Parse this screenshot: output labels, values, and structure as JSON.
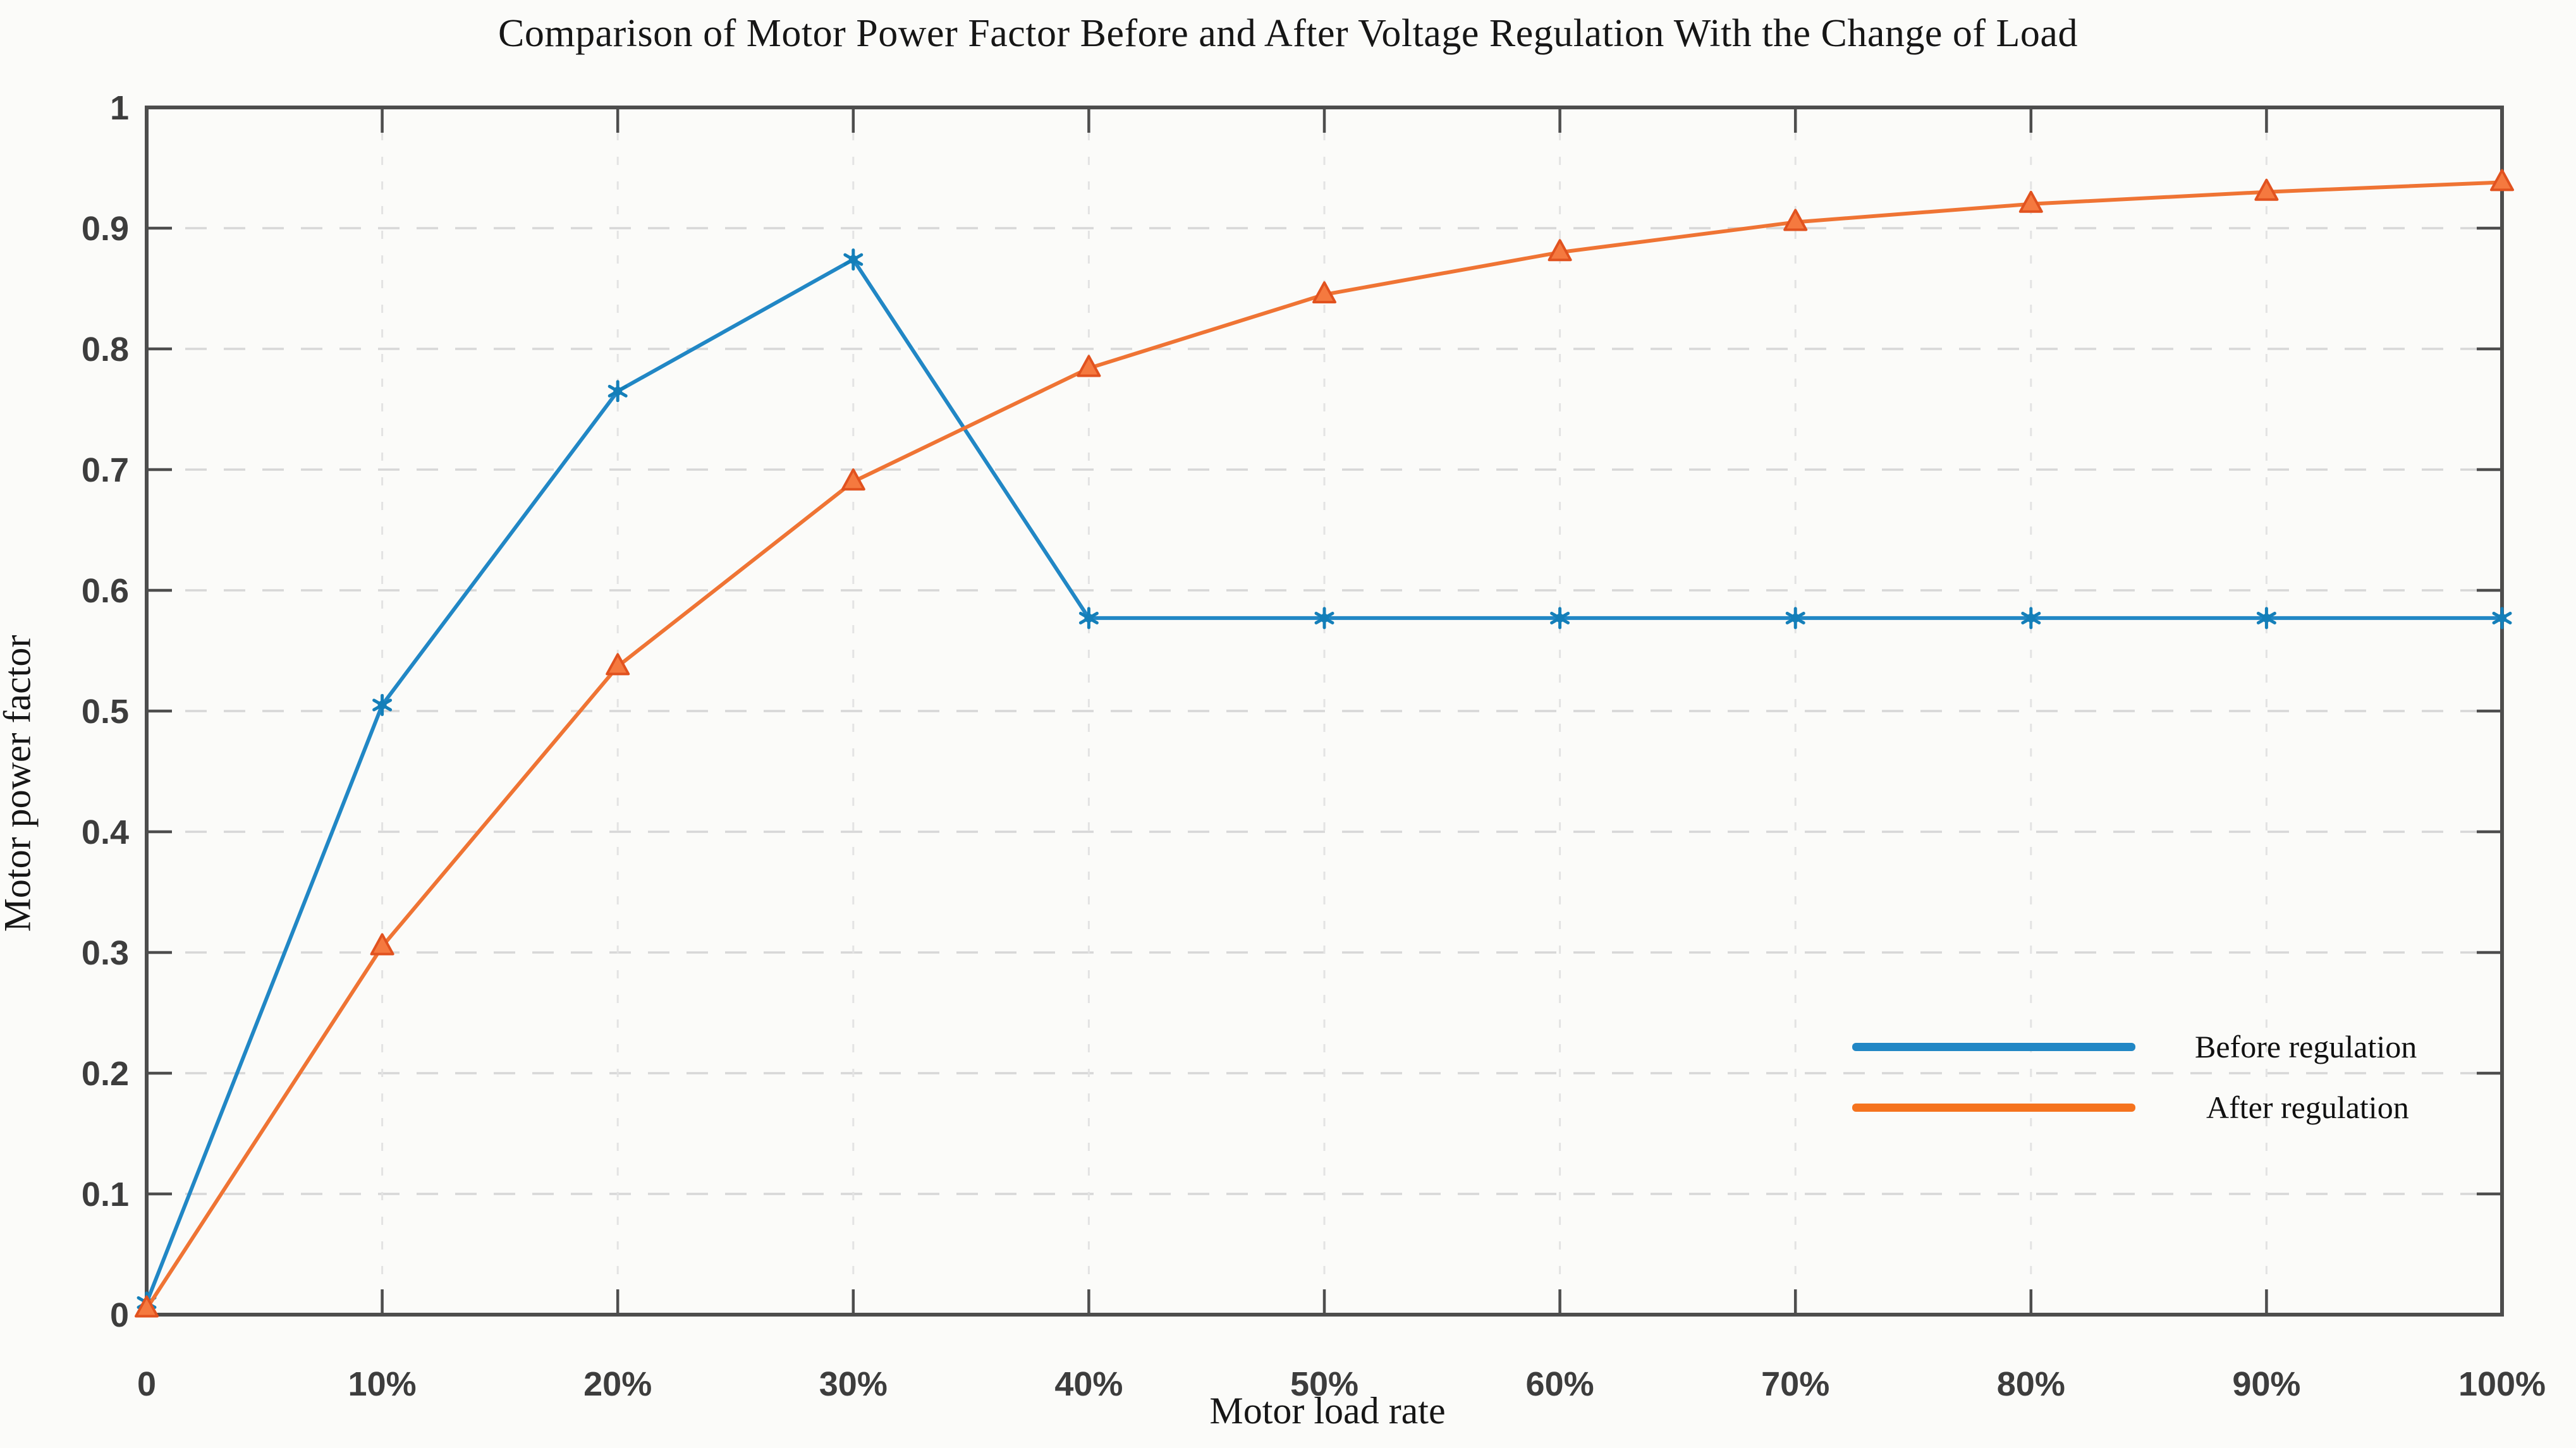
{
  "title": "Comparison of Motor Power Factor Before and After Voltage Regulation With the Change of Load",
  "axes": {
    "x_label": "Motor load rate",
    "y_label": "Motor power factor"
  },
  "legend": {
    "items": [
      {
        "label": "Before regulation",
        "color": "#2187c5"
      },
      {
        "label": "After regulation",
        "color": "#f5731e"
      }
    ]
  },
  "colors": {
    "before_line": "#2187c5",
    "before_marker": "#147fb9",
    "after_line": "#ef7434",
    "after_marker_edge": "#e1521f",
    "after_marker_fill": "#f5793f",
    "axis": "#4d4d4d",
    "grid_horizontal": "#d7d7d7",
    "grid_vertical": "#e3e3e3",
    "tick_text": "#3d3d3d",
    "background": "#fbfbf9"
  },
  "chart_data": {
    "type": "line",
    "title": "Comparison of Motor Power Factor Before and After Voltage Regulation With the Change of Load",
    "xlabel": "Motor load rate",
    "ylabel": "Motor power factor",
    "x": [
      0,
      10,
      20,
      30,
      40,
      50,
      60,
      70,
      80,
      90,
      100
    ],
    "x_tick_labels": [
      "0",
      "10%",
      "20%",
      "30%",
      "40%",
      "50%",
      "60%",
      "70%",
      "80%",
      "90%",
      "100%"
    ],
    "y_ticks": [
      0,
      0.1,
      0.2,
      0.3,
      0.4,
      0.5,
      0.6,
      0.7,
      0.8,
      0.9,
      1
    ],
    "y_tick_labels": [
      "0",
      "0.1",
      "0.2",
      "0.3",
      "0.4",
      "0.5",
      "0.6",
      "0.7",
      "0.8",
      "0.9",
      "1"
    ],
    "xlim": [
      0,
      100
    ],
    "ylim": [
      0,
      1
    ],
    "grid": true,
    "legend_position": "inside-right",
    "series": [
      {
        "name": "Before regulation",
        "marker": "asterisk",
        "values": [
          0.01,
          0.505,
          0.765,
          0.874,
          0.577,
          0.577,
          0.577,
          0.577,
          0.577,
          0.577,
          0.577
        ]
      },
      {
        "name": "After regulation",
        "marker": "triangle-up",
        "values": [
          0.005,
          0.305,
          0.537,
          0.69,
          0.784,
          0.845,
          0.88,
          0.905,
          0.92,
          0.93,
          0.938
        ]
      }
    ]
  }
}
